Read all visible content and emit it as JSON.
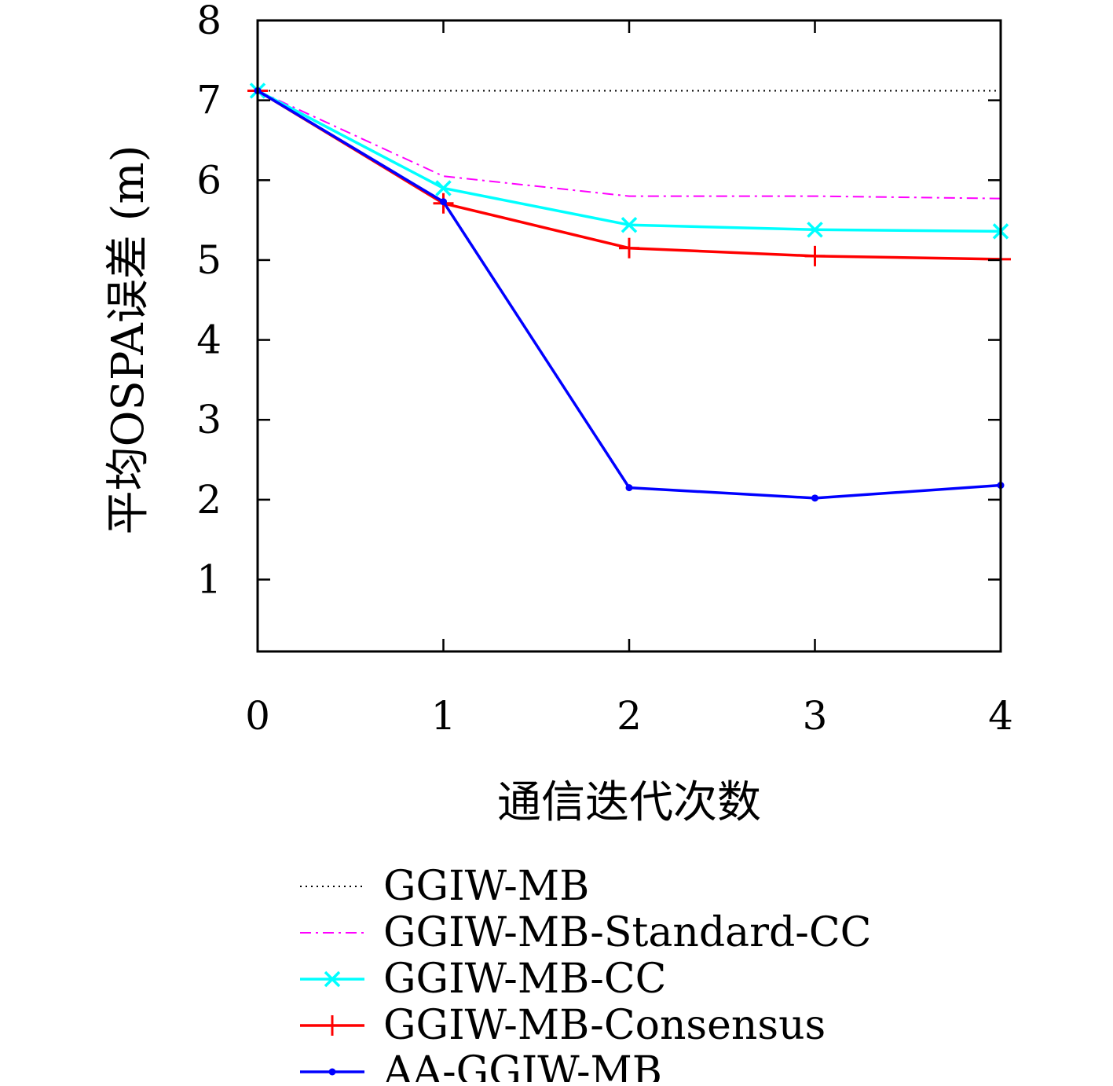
{
  "chart_data": {
    "type": "line",
    "xlabel": "通信迭代次数",
    "ylabel": "平均OSPA误差 (m)",
    "x": [
      0,
      1,
      2,
      3,
      4
    ],
    "xlim": [
      0,
      4
    ],
    "ylim": [
      0.1,
      8
    ],
    "xticks": [
      "0",
      "1",
      "2",
      "3",
      "4"
    ],
    "yticks": [
      "1",
      "2",
      "3",
      "4",
      "5",
      "6",
      "7",
      "8"
    ],
    "grid": false,
    "legend_position": "below",
    "series": [
      {
        "name": "GGIW-MB",
        "values": [
          7.12,
          7.12,
          7.12,
          7.12,
          7.12
        ],
        "color": "#000000",
        "style": "dotted",
        "marker": "none"
      },
      {
        "name": "GGIW-MB-Standard-CC",
        "values": [
          7.12,
          6.05,
          5.8,
          5.8,
          5.77
        ],
        "color": "#ff00ff",
        "style": "dashdot",
        "marker": "none"
      },
      {
        "name": "GGIW-MB-CC",
        "values": [
          7.12,
          5.9,
          5.44,
          5.38,
          5.36
        ],
        "color": "#00ffff",
        "style": "solid",
        "marker": "x"
      },
      {
        "name": "GGIW-MB-Consensus",
        "values": [
          7.12,
          5.71,
          5.15,
          5.05,
          5.01
        ],
        "color": "#ff0000",
        "style": "solid",
        "marker": "plus"
      },
      {
        "name": "AA-GGIW-MB",
        "values": [
          7.12,
          5.73,
          2.15,
          2.02,
          2.18
        ],
        "color": "#0000ff",
        "style": "solid",
        "marker": "dot"
      }
    ]
  }
}
